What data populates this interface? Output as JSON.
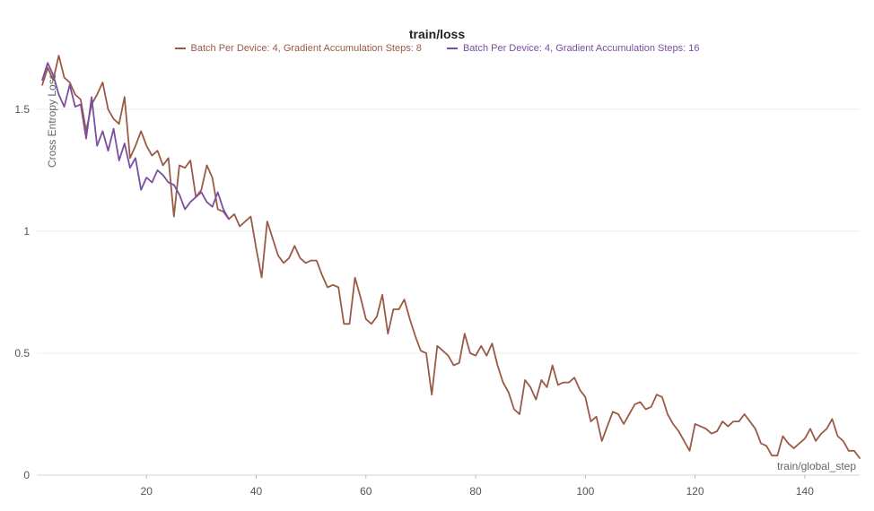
{
  "chart_data": {
    "type": "line",
    "title": "train/loss",
    "xlabel": "train/global_step",
    "ylabel": "Cross Entropy Loss",
    "xlim": [
      0,
      150
    ],
    "ylim": [
      0,
      1.72
    ],
    "x_ticks": [
      20,
      40,
      60,
      80,
      100,
      120,
      140
    ],
    "y_ticks": [
      0,
      0.5,
      1,
      1.5
    ],
    "y_tick_labels": [
      "0",
      "0.5",
      "1",
      "1.5"
    ],
    "grid": "horizontal",
    "legend_position": "top-center",
    "series": [
      {
        "name": "Batch Per Device: 4, Gradient Accumulation Steps: 8",
        "color": "#9b5a45",
        "x": [
          1,
          2,
          3,
          4,
          5,
          6,
          7,
          8,
          9,
          10,
          11,
          12,
          13,
          14,
          15,
          16,
          17,
          18,
          19,
          20,
          21,
          22,
          23,
          24,
          25,
          26,
          27,
          28,
          29,
          30,
          31,
          32,
          33,
          34,
          35,
          36,
          37,
          38,
          39,
          40,
          41,
          42,
          43,
          44,
          45,
          46,
          47,
          48,
          49,
          50,
          51,
          52,
          53,
          54,
          55,
          56,
          57,
          58,
          59,
          60,
          61,
          62,
          63,
          64,
          65,
          66,
          67,
          68,
          69,
          70,
          71,
          72,
          73,
          74,
          75,
          76,
          77,
          78,
          79,
          80,
          81,
          82,
          83,
          84,
          85,
          86,
          87,
          88,
          89,
          90,
          91,
          92,
          93,
          94,
          95,
          96,
          97,
          98,
          99,
          100,
          101,
          102,
          103,
          104,
          105,
          106,
          107,
          108,
          109,
          110,
          111,
          112,
          113,
          114,
          115,
          116,
          117,
          118,
          119,
          120,
          121,
          122,
          123,
          124,
          125,
          126,
          127,
          128,
          129,
          130,
          131,
          132,
          133,
          134,
          135,
          136,
          137,
          138,
          139,
          140,
          141,
          142,
          143,
          144,
          145,
          146,
          147,
          148,
          149,
          150
        ],
        "y": [
          1.6,
          1.67,
          1.62,
          1.72,
          1.63,
          1.61,
          1.56,
          1.54,
          1.41,
          1.52,
          1.56,
          1.61,
          1.5,
          1.46,
          1.44,
          1.55,
          1.3,
          1.35,
          1.41,
          1.35,
          1.31,
          1.33,
          1.27,
          1.3,
          1.06,
          1.27,
          1.26,
          1.29,
          1.14,
          1.17,
          1.27,
          1.22,
          1.09,
          1.08,
          1.05,
          1.07,
          1.02,
          1.04,
          1.06,
          0.93,
          0.81,
          1.04,
          0.97,
          0.9,
          0.87,
          0.89,
          0.94,
          0.89,
          0.87,
          0.88,
          0.88,
          0.82,
          0.77,
          0.78,
          0.77,
          0.62,
          0.62,
          0.81,
          0.73,
          0.64,
          0.62,
          0.65,
          0.74,
          0.58,
          0.68,
          0.68,
          0.72,
          0.64,
          0.57,
          0.51,
          0.5,
          0.33,
          0.53,
          0.51,
          0.49,
          0.45,
          0.46,
          0.58,
          0.5,
          0.49,
          0.53,
          0.49,
          0.54,
          0.45,
          0.38,
          0.34,
          0.27,
          0.25,
          0.39,
          0.36,
          0.31,
          0.39,
          0.36,
          0.45,
          0.37,
          0.38,
          0.38,
          0.4,
          0.35,
          0.32,
          0.22,
          0.24,
          0.14,
          0.2,
          0.26,
          0.25,
          0.21,
          0.25,
          0.29,
          0.3,
          0.27,
          0.28,
          0.33,
          0.32,
          0.25,
          0.21,
          0.18,
          0.14,
          0.1,
          0.21,
          0.2,
          0.19,
          0.17,
          0.18,
          0.22,
          0.2,
          0.22,
          0.22,
          0.25,
          0.22,
          0.19,
          0.13,
          0.12,
          0.08,
          0.08,
          0.16,
          0.13,
          0.11,
          0.13,
          0.15,
          0.19,
          0.14,
          0.17,
          0.19,
          0.23,
          0.16,
          0.14,
          0.1,
          0.1,
          0.07
        ]
      },
      {
        "name": "Batch Per Device: 4, Gradient Accumulation Steps: 16",
        "color": "#7a4fa0",
        "x": [
          1,
          2,
          3,
          4,
          5,
          6,
          7,
          8,
          9,
          10,
          11,
          12,
          13,
          14,
          15,
          16,
          17,
          18,
          19,
          20,
          21,
          22,
          23,
          24,
          25,
          26,
          27,
          28,
          29,
          30,
          31,
          32,
          33,
          34,
          35
        ],
        "y": [
          1.62,
          1.69,
          1.64,
          1.56,
          1.51,
          1.6,
          1.51,
          1.52,
          1.38,
          1.55,
          1.35,
          1.41,
          1.33,
          1.42,
          1.29,
          1.36,
          1.26,
          1.3,
          1.17,
          1.22,
          1.2,
          1.25,
          1.23,
          1.2,
          1.19,
          1.15,
          1.09,
          1.12,
          1.14,
          1.16,
          1.12,
          1.1,
          1.16,
          1.09,
          1.05
        ]
      }
    ]
  }
}
